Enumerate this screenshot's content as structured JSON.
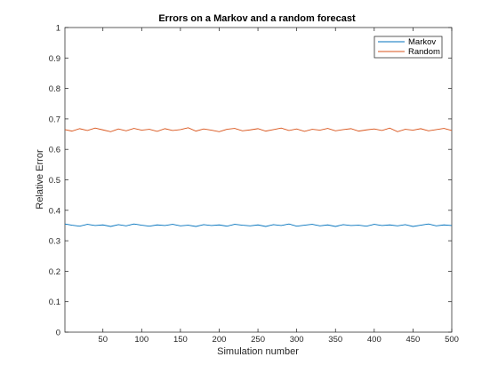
{
  "chart_data": {
    "type": "line",
    "title": "Errors on a Markov and a random forecast",
    "xlabel": "Simulation number",
    "ylabel": "Relative Error",
    "xlim": [
      1,
      500
    ],
    "ylim": [
      0,
      1
    ],
    "x_ticks": [
      50,
      100,
      150,
      200,
      250,
      300,
      350,
      400,
      450,
      500
    ],
    "y_ticks": [
      0,
      0.1,
      0.2,
      0.3,
      0.4,
      0.5,
      0.6,
      0.7,
      0.8,
      0.9,
      1
    ],
    "x_tick_labels": [
      "50",
      "100",
      "150",
      "200",
      "250",
      "300",
      "350",
      "400",
      "450",
      "500"
    ],
    "y_tick_labels": [
      "0",
      "0.1",
      "0.2",
      "0.3",
      "0.4",
      "0.5",
      "0.6",
      "0.7",
      "0.8",
      "0.9",
      "1"
    ],
    "grid": false,
    "legend_position": "top-right",
    "x": [
      1,
      10,
      20,
      30,
      40,
      50,
      60,
      70,
      80,
      90,
      100,
      110,
      120,
      130,
      140,
      150,
      160,
      170,
      180,
      190,
      200,
      210,
      220,
      230,
      240,
      250,
      260,
      270,
      280,
      290,
      300,
      310,
      320,
      330,
      340,
      350,
      360,
      370,
      380,
      390,
      400,
      410,
      420,
      430,
      440,
      450,
      460,
      470,
      480,
      490,
      500
    ],
    "series": [
      {
        "name": "Markov",
        "color": "#0072bd",
        "values": [
          0.355,
          0.351,
          0.348,
          0.354,
          0.35,
          0.352,
          0.347,
          0.353,
          0.349,
          0.355,
          0.351,
          0.348,
          0.352,
          0.35,
          0.354,
          0.349,
          0.351,
          0.347,
          0.353,
          0.35,
          0.352,
          0.348,
          0.354,
          0.351,
          0.349,
          0.352,
          0.347,
          0.353,
          0.35,
          0.355,
          0.348,
          0.351,
          0.354,
          0.349,
          0.352,
          0.347,
          0.353,
          0.35,
          0.351,
          0.348,
          0.354,
          0.35,
          0.352,
          0.349,
          0.353,
          0.347,
          0.351,
          0.355,
          0.349,
          0.352,
          0.35
        ]
      },
      {
        "name": "Random",
        "color": "#d95319",
        "values": [
          0.665,
          0.66,
          0.668,
          0.662,
          0.67,
          0.664,
          0.658,
          0.667,
          0.661,
          0.669,
          0.663,
          0.666,
          0.659,
          0.668,
          0.662,
          0.665,
          0.671,
          0.66,
          0.667,
          0.663,
          0.658,
          0.666,
          0.669,
          0.661,
          0.664,
          0.668,
          0.66,
          0.665,
          0.67,
          0.662,
          0.667,
          0.659,
          0.666,
          0.663,
          0.669,
          0.661,
          0.665,
          0.668,
          0.66,
          0.664,
          0.667,
          0.662,
          0.67,
          0.658,
          0.666,
          0.663,
          0.668,
          0.661,
          0.665,
          0.669,
          0.662
        ]
      }
    ]
  }
}
